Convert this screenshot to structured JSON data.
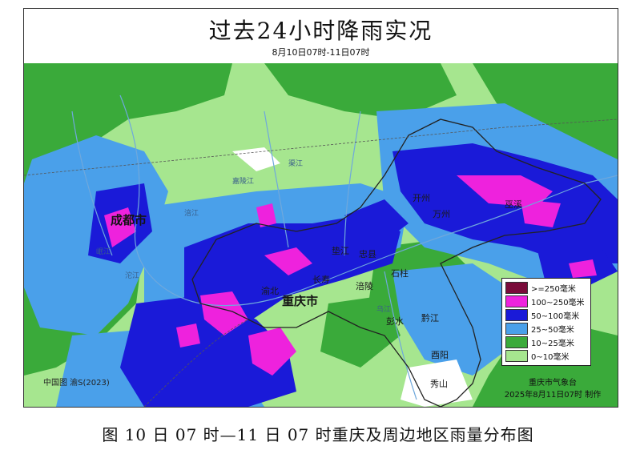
{
  "title": "过去24小时降雨实况",
  "subtitle": "8月10日07时-11日07时",
  "legend": [
    {
      "label": ">=250毫米",
      "color": "#7a0b3a"
    },
    {
      "label": "100~250毫米",
      "color": "#ee22dd"
    },
    {
      "label": "50~100毫米",
      "color": "#1a1ad8"
    },
    {
      "label": "25~50毫米",
      "color": "#4aa0ea"
    },
    {
      "label": "10~25毫米",
      "color": "#3aaa3a"
    },
    {
      "label": "0~10毫米",
      "color": "#a6e68f"
    }
  ],
  "credit": {
    "agency": "重庆市气象台",
    "time": "2025年8月11日07时  制作"
  },
  "copyright": "中国图   渝S(2023)",
  "labels": {
    "chengdu": "成都市",
    "chongqing": "重庆市",
    "zhongxian": "忠县",
    "changshou": "长寿",
    "fuling": "涪陵",
    "shizhu": "石柱",
    "qianjiang": "黔江",
    "youyang": "酉阳",
    "xiushan": "秀山",
    "pengshui": "彭水",
    "dianjiang": "垫江",
    "yubei": "渝北",
    "kaizhou": "开州",
    "wuxi": "巫溪",
    "wanzhou": "万州"
  },
  "rivers": {
    "jialingjiang": "嘉陵江",
    "fujiang": "涪江",
    "tuojiang": "沱江",
    "minjiang": "岷江",
    "wujiang": "乌江",
    "qujiang": "渠江"
  },
  "caption": "图   10 日 07 时—11 日 07 时重庆及周边地区雨量分布图"
}
